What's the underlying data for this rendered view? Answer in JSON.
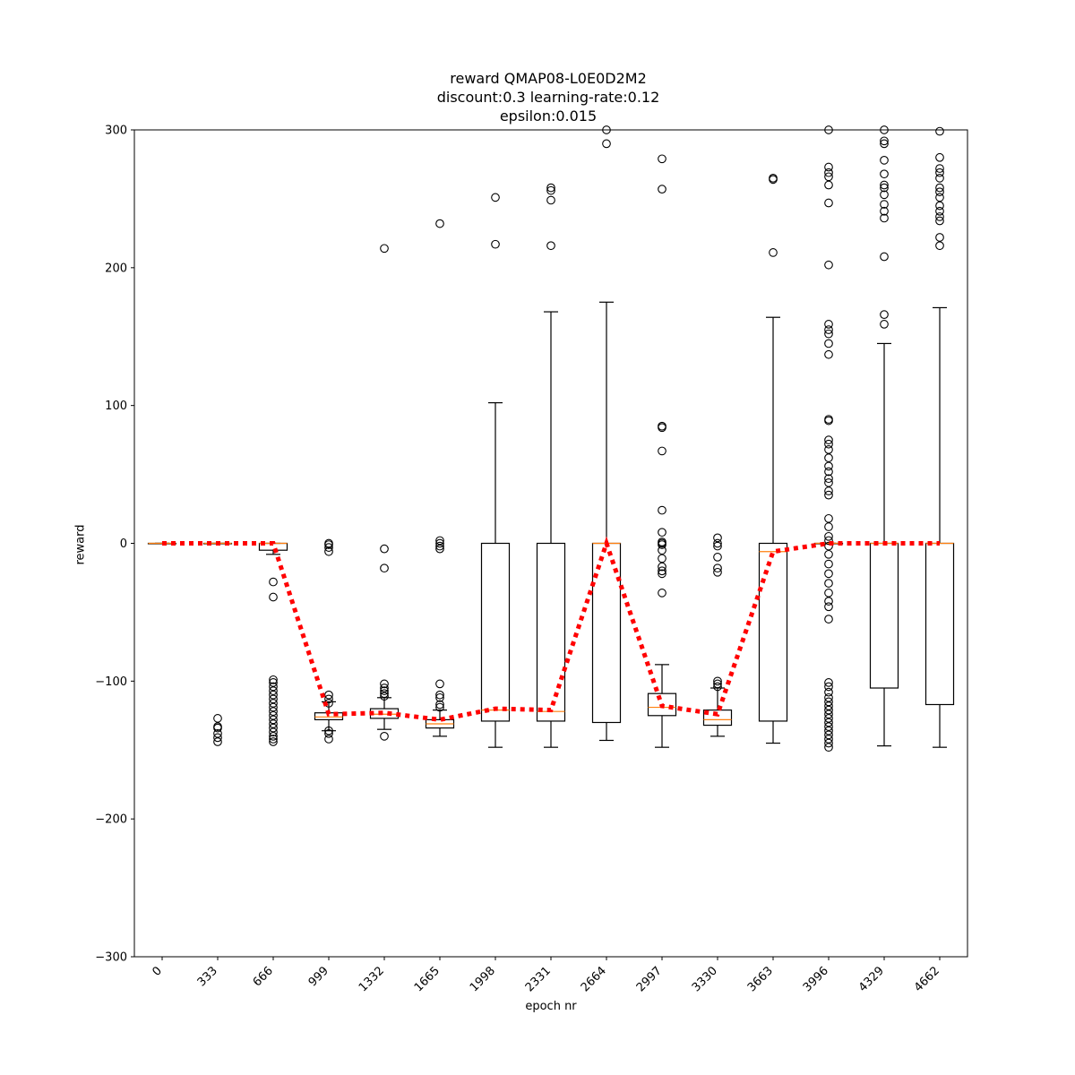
{
  "chart_data": {
    "type": "box",
    "title_lines": [
      "reward QMAP08-L0E0D2M2",
      "discount:0.3 learning-rate:0.12",
      "epsilon:0.015"
    ],
    "xlabel": "epoch nr",
    "ylabel": "reward",
    "ylim": [
      -300,
      300
    ],
    "yticks": [
      "300",
      "200",
      "100",
      "0",
      "−100",
      "−200",
      "−300"
    ],
    "categories": [
      "0",
      "333",
      "666",
      "999",
      "1332",
      "1665",
      "1998",
      "2331",
      "2664",
      "2997",
      "3330",
      "3663",
      "3996",
      "4329",
      "4662"
    ],
    "boxes": [
      {
        "q1": 0,
        "q3": 0,
        "median": 0,
        "whisker_low": 0,
        "whisker_high": 0,
        "outliers": []
      },
      {
        "q1": 0,
        "q3": 0,
        "median": 0,
        "whisker_low": 0,
        "whisker_high": 0,
        "outliers": [
          -127,
          -133,
          -134,
          -138,
          -141,
          -144
        ]
      },
      {
        "q1": -5,
        "q3": 0,
        "median": 0,
        "whisker_low": -8,
        "whisker_high": 0,
        "outliers": [
          -28,
          -39,
          -99,
          -101,
          -104,
          -107,
          -110,
          -113,
          -116,
          -119,
          -122,
          -125,
          -128,
          -131,
          -134,
          -137,
          -140,
          -142,
          -144
        ]
      },
      {
        "q1": -128,
        "q3": -123,
        "median": -126,
        "whisker_low": -136,
        "whisker_high": -115,
        "outliers": [
          0,
          -1,
          -3,
          -6,
          -110,
          -113,
          -116,
          -136,
          -138,
          -142
        ]
      },
      {
        "q1": -127,
        "q3": -120,
        "median": -124,
        "whisker_low": -135,
        "whisker_high": -112,
        "outliers": [
          214,
          -4,
          -18,
          -102,
          -105,
          -107,
          -109,
          -111,
          -140
        ]
      },
      {
        "q1": -134,
        "q3": -128,
        "median": -131,
        "whisker_low": -140,
        "whisker_high": -121,
        "outliers": [
          232,
          2,
          0,
          -2,
          -4,
          -102,
          -110,
          -112,
          -117,
          -119
        ]
      },
      {
        "q1": -129,
        "q3": 0,
        "median": -121,
        "whisker_low": -148,
        "whisker_high": 102,
        "outliers": [
          251,
          217
        ]
      },
      {
        "q1": -129,
        "q3": 0,
        "median": -122,
        "whisker_low": -148,
        "whisker_high": 168,
        "outliers": [
          258,
          256,
          249,
          216
        ]
      },
      {
        "q1": -130,
        "q3": 0,
        "median": 0,
        "whisker_low": -143,
        "whisker_high": 175,
        "outliers": [
          300,
          290
        ]
      },
      {
        "q1": -125,
        "q3": -109,
        "median": -119,
        "whisker_low": -148,
        "whisker_high": -88,
        "outliers": [
          279,
          257,
          85,
          84,
          67,
          24,
          8,
          1,
          0,
          -1,
          -5,
          -11,
          -17,
          -20,
          -22,
          -36
        ]
      },
      {
        "q1": -132,
        "q3": -121,
        "median": -128,
        "whisker_low": -140,
        "whisker_high": -105,
        "outliers": [
          4,
          0,
          -2,
          -10,
          -18,
          -21,
          -100,
          -102,
          -104
        ]
      },
      {
        "q1": -129,
        "q3": 0,
        "median": -6,
        "whisker_low": -145,
        "whisker_high": 164,
        "outliers": [
          265,
          264,
          211
        ]
      },
      {
        "q1": 0,
        "q3": 0,
        "median": 0,
        "whisker_low": 0,
        "whisker_high": 0,
        "outliers": [
          300,
          273,
          269,
          266,
          260,
          247,
          202,
          159,
          155,
          152,
          145,
          137,
          90,
          89,
          75,
          72,
          68,
          62,
          56,
          52,
          47,
          44,
          38,
          35,
          18,
          12,
          5,
          2,
          -2,
          -8,
          -15,
          -22,
          -29,
          -36,
          -42,
          -46,
          -55,
          -101,
          -104,
          -108,
          -112,
          -115,
          -118,
          -121,
          -124,
          -127,
          -130,
          -133,
          -136,
          -139,
          -142,
          -145,
          -148
        ]
      },
      {
        "q1": -105,
        "q3": 0,
        "median": 0,
        "whisker_low": -147,
        "whisker_high": 145,
        "outliers": [
          301,
          292,
          290,
          278,
          268,
          260,
          258,
          253,
          246,
          241,
          236,
          208,
          166,
          159
        ]
      },
      {
        "q1": -117,
        "q3": 0,
        "median": 0,
        "whisker_low": -148,
        "whisker_high": 171,
        "outliers": [
          299,
          280,
          272,
          269,
          265,
          258,
          255,
          251,
          245,
          241,
          237,
          234,
          222,
          216
        ]
      }
    ],
    "mean_line": {
      "name": "mean",
      "color": "#ff0000",
      "values": [
        0,
        0,
        0,
        -124,
        -123,
        -128,
        -120,
        -121,
        0,
        -118,
        -124,
        -6,
        0,
        0,
        0
      ]
    },
    "median_color": "#ff7f0e",
    "grid": false,
    "legend": "none"
  }
}
